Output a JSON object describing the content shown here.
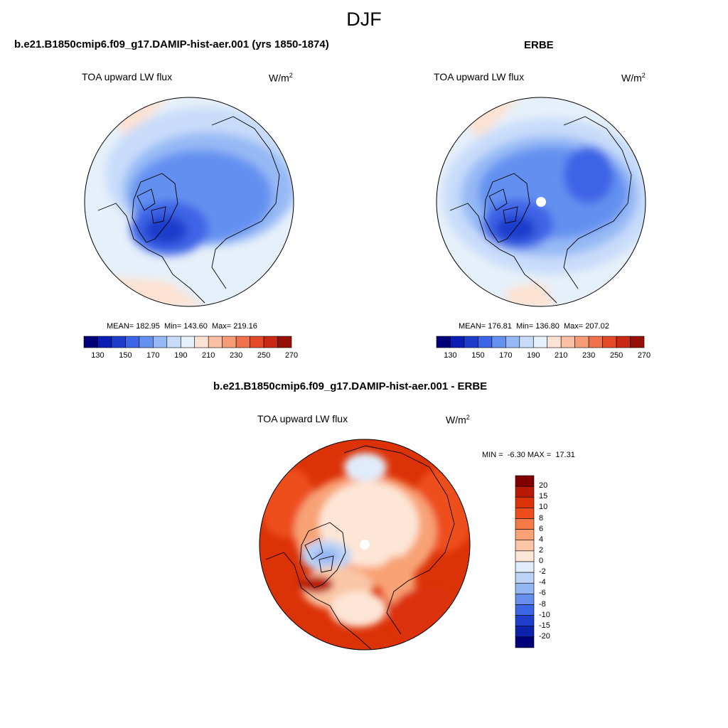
{
  "figure": {
    "season": "DJF",
    "panels": [
      {
        "id": "model",
        "title": "b.e21.B1850cmip6.f09_g17.DAMIP-hist-aer.001 (yrs 1850-1874)",
        "variable": "TOA upward LW flux",
        "units_base": "W/m",
        "units_exp": "2",
        "stats": "MEAN= 182.95  Min= 143.60  Max= 219.16",
        "pole_mask": false
      },
      {
        "id": "obs",
        "title": "ERBE",
        "variable": "TOA upward LW flux",
        "units_base": "W/m",
        "units_exp": "2",
        "stats": "MEAN= 176.81  Min= 136.80  Max= 207.02",
        "pole_mask": true
      },
      {
        "id": "diff",
        "title": "b.e21.B1850cmip6.f09_g17.DAMIP-hist-aer.001 - ERBE",
        "variable": "TOA upward LW flux",
        "units_base": "W/m",
        "units_exp": "2",
        "stats": "MIN =  -6.30 MAX =  17.31",
        "pole_mask": true
      }
    ],
    "abs_colorbar": {
      "labels": [
        "130",
        "150",
        "170",
        "190",
        "210",
        "230",
        "250",
        "270"
      ],
      "colors": [
        "#00007a",
        "#0a1eb4",
        "#1e3ccc",
        "#3c64e6",
        "#6490f0",
        "#96b9f5",
        "#c8dcfa",
        "#e6f0fa",
        "#fde2d2",
        "#f9c0a4",
        "#f59b76",
        "#f0724c",
        "#e44a28",
        "#c82814",
        "#961008"
      ]
    },
    "diff_colorbar": {
      "labels": [
        "20",
        "15",
        "10",
        "8",
        "6",
        "4",
        "2",
        "0",
        "-2",
        "-4",
        "-6",
        "-8",
        "-10",
        "-15",
        "-20"
      ],
      "colors": [
        "#800000",
        "#b81a06",
        "#dc3208",
        "#ee4e1c",
        "#f47a48",
        "#f8a276",
        "#fac6a6",
        "#fde6d6",
        "#e0ecfa",
        "#bcd3f6",
        "#94b6f2",
        "#6690ec",
        "#3c66e4",
        "#1e3ecc",
        "#0c22aa",
        "#00007a"
      ]
    }
  }
}
